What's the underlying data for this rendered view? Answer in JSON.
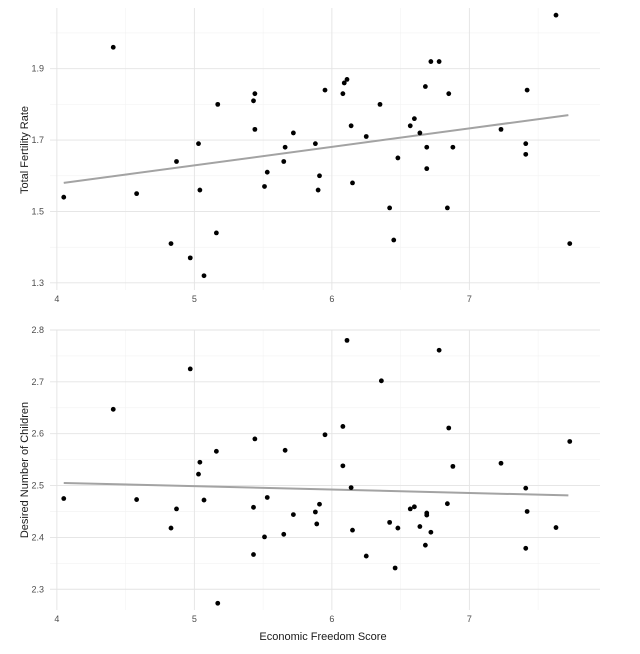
{
  "chart_data": [
    {
      "type": "scatter",
      "title": "",
      "xlabel": "",
      "ylabel": "Total Fertility Rate",
      "xlim": [
        3.95,
        7.95
      ],
      "ylim": [
        1.28,
        2.07
      ],
      "x_ticks": [
        "4",
        "5",
        "6",
        "7"
      ],
      "y_ticks": [
        "1.3",
        "1.5",
        "1.7",
        "1.9"
      ],
      "grid": true,
      "trend_line": {
        "x": [
          4.05,
          7.72
        ],
        "y": [
          1.58,
          1.77
        ]
      },
      "points": [
        {
          "x": 4.05,
          "y": 1.54
        },
        {
          "x": 4.41,
          "y": 1.96
        },
        {
          "x": 4.58,
          "y": 1.55
        },
        {
          "x": 4.83,
          "y": 1.41
        },
        {
          "x": 4.87,
          "y": 1.64
        },
        {
          "x": 4.97,
          "y": 1.37
        },
        {
          "x": 5.03,
          "y": 1.69
        },
        {
          "x": 5.04,
          "y": 1.56
        },
        {
          "x": 5.07,
          "y": 1.32
        },
        {
          "x": 5.16,
          "y": 1.44
        },
        {
          "x": 5.17,
          "y": 1.8
        },
        {
          "x": 5.43,
          "y": 1.81
        },
        {
          "x": 5.44,
          "y": 1.83
        },
        {
          "x": 5.44,
          "y": 1.73
        },
        {
          "x": 5.51,
          "y": 1.57
        },
        {
          "x": 5.53,
          "y": 1.61
        },
        {
          "x": 5.65,
          "y": 1.64
        },
        {
          "x": 5.66,
          "y": 1.68
        },
        {
          "x": 5.72,
          "y": 1.72
        },
        {
          "x": 5.88,
          "y": 1.69
        },
        {
          "x": 5.9,
          "y": 1.56
        },
        {
          "x": 5.91,
          "y": 1.6
        },
        {
          "x": 5.95,
          "y": 1.84
        },
        {
          "x": 6.08,
          "y": 1.83
        },
        {
          "x": 6.09,
          "y": 1.86
        },
        {
          "x": 6.11,
          "y": 1.87
        },
        {
          "x": 6.14,
          "y": 1.74
        },
        {
          "x": 6.15,
          "y": 1.58
        },
        {
          "x": 6.25,
          "y": 1.71
        },
        {
          "x": 6.35,
          "y": 1.8
        },
        {
          "x": 6.42,
          "y": 1.51
        },
        {
          "x": 6.45,
          "y": 1.42
        },
        {
          "x": 6.48,
          "y": 1.65
        },
        {
          "x": 6.57,
          "y": 1.74
        },
        {
          "x": 6.6,
          "y": 1.76
        },
        {
          "x": 6.64,
          "y": 1.72
        },
        {
          "x": 6.68,
          "y": 1.85
        },
        {
          "x": 6.69,
          "y": 1.68
        },
        {
          "x": 6.69,
          "y": 1.62
        },
        {
          "x": 6.72,
          "y": 1.92
        },
        {
          "x": 6.78,
          "y": 1.92
        },
        {
          "x": 6.84,
          "y": 1.51
        },
        {
          "x": 6.85,
          "y": 1.83
        },
        {
          "x": 6.88,
          "y": 1.68
        },
        {
          "x": 7.23,
          "y": 1.73
        },
        {
          "x": 7.41,
          "y": 1.69
        },
        {
          "x": 7.41,
          "y": 1.66
        },
        {
          "x": 7.42,
          "y": 1.84
        },
        {
          "x": 7.63,
          "y": 2.05
        },
        {
          "x": 7.73,
          "y": 1.41
        }
      ]
    },
    {
      "type": "scatter",
      "title": "",
      "xlabel": "Economic Freedom Score",
      "ylabel": "Desired Number of Children",
      "xlim": [
        3.95,
        7.95
      ],
      "ylim": [
        2.26,
        2.8
      ],
      "x_ticks": [
        "4",
        "5",
        "6",
        "7"
      ],
      "y_ticks": [
        "2.3",
        "2.4",
        "2.5",
        "2.6",
        "2.7",
        "2.8"
      ],
      "grid": true,
      "trend_line": {
        "x": [
          4.05,
          7.72
        ],
        "y": [
          2.505,
          2.481
        ]
      },
      "points": [
        {
          "x": 4.05,
          "y": 2.475
        },
        {
          "x": 4.41,
          "y": 2.647
        },
        {
          "x": 4.58,
          "y": 2.473
        },
        {
          "x": 4.83,
          "y": 2.418
        },
        {
          "x": 4.87,
          "y": 2.455
        },
        {
          "x": 4.97,
          "y": 2.725
        },
        {
          "x": 5.03,
          "y": 2.522
        },
        {
          "x": 5.04,
          "y": 2.545
        },
        {
          "x": 5.07,
          "y": 2.472
        },
        {
          "x": 5.16,
          "y": 2.566
        },
        {
          "x": 5.17,
          "y": 2.273
        },
        {
          "x": 5.43,
          "y": 2.458
        },
        {
          "x": 5.43,
          "y": 2.367
        },
        {
          "x": 5.44,
          "y": 2.59
        },
        {
          "x": 5.51,
          "y": 2.401
        },
        {
          "x": 5.53,
          "y": 2.477
        },
        {
          "x": 5.65,
          "y": 2.406
        },
        {
          "x": 5.66,
          "y": 2.568
        },
        {
          "x": 5.72,
          "y": 2.444
        },
        {
          "x": 5.88,
          "y": 2.449
        },
        {
          "x": 5.89,
          "y": 2.426
        },
        {
          "x": 5.91,
          "y": 2.464
        },
        {
          "x": 5.95,
          "y": 2.598
        },
        {
          "x": 6.08,
          "y": 2.614
        },
        {
          "x": 6.08,
          "y": 2.538
        },
        {
          "x": 6.11,
          "y": 2.78
        },
        {
          "x": 6.14,
          "y": 2.496
        },
        {
          "x": 6.15,
          "y": 2.414
        },
        {
          "x": 6.25,
          "y": 2.364
        },
        {
          "x": 6.36,
          "y": 2.702
        },
        {
          "x": 6.42,
          "y": 2.429
        },
        {
          "x": 6.46,
          "y": 2.341
        },
        {
          "x": 6.48,
          "y": 2.418
        },
        {
          "x": 6.57,
          "y": 2.455
        },
        {
          "x": 6.6,
          "y": 2.459
        },
        {
          "x": 6.64,
          "y": 2.421
        },
        {
          "x": 6.68,
          "y": 2.385
        },
        {
          "x": 6.69,
          "y": 2.447
        },
        {
          "x": 6.69,
          "y": 2.443
        },
        {
          "x": 6.72,
          "y": 2.41
        },
        {
          "x": 6.78,
          "y": 2.761
        },
        {
          "x": 6.84,
          "y": 2.465
        },
        {
          "x": 6.85,
          "y": 2.611
        },
        {
          "x": 6.88,
          "y": 2.537
        },
        {
          "x": 7.23,
          "y": 2.543
        },
        {
          "x": 7.41,
          "y": 2.495
        },
        {
          "x": 7.41,
          "y": 2.379
        },
        {
          "x": 7.42,
          "y": 2.45
        },
        {
          "x": 7.63,
          "y": 2.419
        },
        {
          "x": 7.73,
          "y": 2.585
        }
      ]
    }
  ]
}
